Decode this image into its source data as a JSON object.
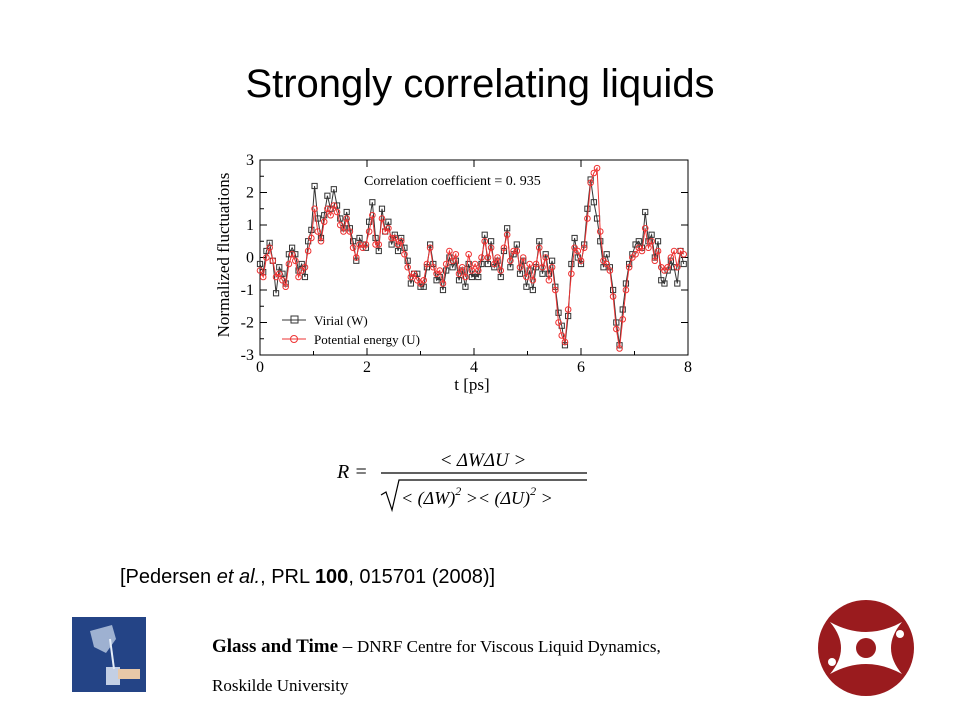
{
  "slide": {
    "title": "Strongly correlating liquids",
    "citation": {
      "before": "[Pedersen ",
      "etal": "et al.",
      "mid": ", PRL ",
      "volume": "100",
      "after": ", 015701 (2008)]"
    },
    "footer": {
      "brand": "Glass and Time",
      "dash": " – ",
      "centre": "DNRF Centre for Viscous Liquid Dynamics,",
      "university": "Roskilde University"
    },
    "formula": {
      "lhs": "R =",
      "numerator": "< ΔWΔU >",
      "den_open": "< (ΔW)",
      "den_mid": " >< (ΔU)",
      "den_close": " >",
      "exponent": "2"
    }
  },
  "chart_data": {
    "type": "line",
    "xlabel": "t [ps]",
    "ylabel": "Normalized fluctuations",
    "xlim": [
      0,
      8
    ],
    "ylim": [
      -3,
      3
    ],
    "xticks": [
      "0",
      "2",
      "4",
      "6",
      "8"
    ],
    "yticks": [
      "3",
      "2",
      "1",
      "0",
      "-1",
      "-2",
      "-3"
    ],
    "annotation": "Correlation coefficient = 0. 935",
    "legend_position": "bottom-left",
    "series": [
      {
        "name": "Virial (W)",
        "color": "#333333",
        "marker": "square",
        "points": [
          [
            0.0,
            -0.2
          ],
          [
            0.06,
            -0.45
          ],
          [
            0.12,
            0.2
          ],
          [
            0.18,
            0.45
          ],
          [
            0.24,
            -0.1
          ],
          [
            0.3,
            -1.1
          ],
          [
            0.36,
            -0.3
          ],
          [
            0.42,
            -0.5
          ],
          [
            0.48,
            -0.8
          ],
          [
            0.54,
            0.1
          ],
          [
            0.6,
            0.3
          ],
          [
            0.66,
            0.1
          ],
          [
            0.72,
            -0.4
          ],
          [
            0.78,
            -0.2
          ],
          [
            0.84,
            -0.6
          ],
          [
            0.9,
            0.5
          ],
          [
            0.96,
            0.85
          ],
          [
            1.02,
            2.2
          ],
          [
            1.08,
            1.2
          ],
          [
            1.14,
            0.6
          ],
          [
            1.2,
            1.3
          ],
          [
            1.26,
            1.9
          ],
          [
            1.32,
            1.5
          ],
          [
            1.38,
            2.1
          ],
          [
            1.44,
            1.6
          ],
          [
            1.5,
            1.2
          ],
          [
            1.56,
            0.9
          ],
          [
            1.62,
            1.4
          ],
          [
            1.68,
            0.9
          ],
          [
            1.74,
            0.5
          ],
          [
            1.8,
            -0.1
          ],
          [
            1.86,
            0.6
          ],
          [
            1.92,
            0.4
          ],
          [
            1.98,
            0.3
          ],
          [
            2.04,
            1.1
          ],
          [
            2.1,
            1.7
          ],
          [
            2.16,
            0.6
          ],
          [
            2.22,
            0.2
          ],
          [
            2.28,
            1.5
          ],
          [
            2.34,
            0.8
          ],
          [
            2.4,
            1.1
          ],
          [
            2.46,
            0.4
          ],
          [
            2.52,
            0.7
          ],
          [
            2.58,
            0.2
          ],
          [
            2.64,
            0.6
          ],
          [
            2.7,
            0.3
          ],
          [
            2.76,
            -0.1
          ],
          [
            2.82,
            -0.8
          ],
          [
            2.88,
            -0.5
          ],
          [
            2.94,
            -0.5
          ],
          [
            3.0,
            -0.9
          ],
          [
            3.06,
            -0.9
          ],
          [
            3.12,
            -0.3
          ],
          [
            3.18,
            0.4
          ],
          [
            3.24,
            -0.2
          ],
          [
            3.3,
            -0.7
          ],
          [
            3.36,
            -0.6
          ],
          [
            3.42,
            -1.0
          ],
          [
            3.48,
            -0.4
          ],
          [
            3.54,
            0.0
          ],
          [
            3.6,
            -0.3
          ],
          [
            3.66,
            -0.1
          ],
          [
            3.72,
            -0.7
          ],
          [
            3.78,
            -0.4
          ],
          [
            3.84,
            -0.9
          ],
          [
            3.9,
            -0.2
          ],
          [
            3.96,
            -0.6
          ],
          [
            4.02,
            -0.5
          ],
          [
            4.08,
            -0.6
          ],
          [
            4.14,
            -0.2
          ],
          [
            4.2,
            0.7
          ],
          [
            4.26,
            -0.2
          ],
          [
            4.32,
            0.5
          ],
          [
            4.38,
            -0.3
          ],
          [
            4.44,
            -0.1
          ],
          [
            4.5,
            -0.6
          ],
          [
            4.56,
            0.2
          ],
          [
            4.62,
            0.9
          ],
          [
            4.68,
            -0.3
          ],
          [
            4.74,
            0.1
          ],
          [
            4.8,
            0.4
          ],
          [
            4.86,
            -0.5
          ],
          [
            4.92,
            -0.1
          ],
          [
            4.98,
            -0.9
          ],
          [
            5.04,
            -0.4
          ],
          [
            5.1,
            -1.0
          ],
          [
            5.16,
            -0.3
          ],
          [
            5.22,
            0.5
          ],
          [
            5.28,
            -0.5
          ],
          [
            5.34,
            0.1
          ],
          [
            5.4,
            -0.5
          ],
          [
            5.46,
            -0.1
          ],
          [
            5.52,
            -0.9
          ],
          [
            5.58,
            -1.7
          ],
          [
            5.64,
            -2.1
          ],
          [
            5.7,
            -2.7
          ],
          [
            5.76,
            -1.8
          ],
          [
            5.82,
            -0.2
          ],
          [
            5.88,
            0.6
          ],
          [
            5.94,
            0.0
          ],
          [
            6.0,
            -0.2
          ],
          [
            6.06,
            0.4
          ],
          [
            6.12,
            1.5
          ],
          [
            6.18,
            2.4
          ],
          [
            6.24,
            1.7
          ],
          [
            6.3,
            1.2
          ],
          [
            6.36,
            0.5
          ],
          [
            6.42,
            -0.3
          ],
          [
            6.48,
            0.1
          ],
          [
            6.54,
            -0.3
          ],
          [
            6.6,
            -1.0
          ],
          [
            6.66,
            -2.0
          ],
          [
            6.72,
            -2.7
          ],
          [
            6.78,
            -1.6
          ],
          [
            6.84,
            -0.8
          ],
          [
            6.9,
            -0.2
          ],
          [
            6.96,
            0.1
          ],
          [
            7.02,
            0.4
          ],
          [
            7.08,
            0.5
          ],
          [
            7.14,
            0.3
          ],
          [
            7.2,
            1.4
          ],
          [
            7.26,
            0.5
          ],
          [
            7.32,
            0.7
          ],
          [
            7.38,
            0.0
          ],
          [
            7.44,
            0.5
          ],
          [
            7.5,
            -0.7
          ],
          [
            7.56,
            -0.8
          ],
          [
            7.62,
            -0.4
          ],
          [
            7.68,
            -0.1
          ],
          [
            7.74,
            -0.3
          ],
          [
            7.8,
            -0.8
          ],
          [
            7.86,
            0.2
          ],
          [
            7.92,
            -0.2
          ]
        ]
      },
      {
        "name": "Potential energy (U)",
        "color": "#ee3333",
        "marker": "circle",
        "points": [
          [
            0.0,
            -0.4
          ],
          [
            0.06,
            -0.6
          ],
          [
            0.12,
            0.0
          ],
          [
            0.18,
            0.3
          ],
          [
            0.24,
            -0.1
          ],
          [
            0.3,
            -0.6
          ],
          [
            0.36,
            -0.5
          ],
          [
            0.42,
            -0.7
          ],
          [
            0.48,
            -0.9
          ],
          [
            0.54,
            -0.2
          ],
          [
            0.6,
            0.1
          ],
          [
            0.66,
            -0.1
          ],
          [
            0.72,
            -0.6
          ],
          [
            0.78,
            -0.4
          ],
          [
            0.84,
            -0.3
          ],
          [
            0.9,
            0.2
          ],
          [
            0.96,
            0.6
          ],
          [
            1.02,
            1.5
          ],
          [
            1.08,
            0.8
          ],
          [
            1.14,
            0.5
          ],
          [
            1.2,
            1.1
          ],
          [
            1.26,
            1.5
          ],
          [
            1.32,
            1.3
          ],
          [
            1.38,
            1.6
          ],
          [
            1.44,
            1.4
          ],
          [
            1.5,
            1.0
          ],
          [
            1.56,
            0.8
          ],
          [
            1.62,
            1.2
          ],
          [
            1.68,
            0.8
          ],
          [
            1.74,
            0.3
          ],
          [
            1.8,
            0.0
          ],
          [
            1.86,
            0.4
          ],
          [
            1.92,
            0.3
          ],
          [
            1.98,
            0.4
          ],
          [
            2.04,
            0.8
          ],
          [
            2.1,
            1.3
          ],
          [
            2.16,
            0.4
          ],
          [
            2.22,
            0.4
          ],
          [
            2.28,
            1.2
          ],
          [
            2.34,
            0.8
          ],
          [
            2.4,
            0.9
          ],
          [
            2.46,
            0.6
          ],
          [
            2.52,
            0.6
          ],
          [
            2.58,
            0.4
          ],
          [
            2.64,
            0.5
          ],
          [
            2.7,
            0.1
          ],
          [
            2.76,
            -0.3
          ],
          [
            2.82,
            -0.6
          ],
          [
            2.88,
            -0.5
          ],
          [
            2.94,
            -0.7
          ],
          [
            3.0,
            -0.8
          ],
          [
            3.06,
            -0.7
          ],
          [
            3.12,
            -0.2
          ],
          [
            3.18,
            0.3
          ],
          [
            3.24,
            -0.3
          ],
          [
            3.3,
            -0.5
          ],
          [
            3.36,
            -0.4
          ],
          [
            3.42,
            -0.8
          ],
          [
            3.48,
            -0.2
          ],
          [
            3.54,
            0.2
          ],
          [
            3.6,
            -0.1
          ],
          [
            3.66,
            0.1
          ],
          [
            3.72,
            -0.5
          ],
          [
            3.78,
            -0.3
          ],
          [
            3.84,
            -0.6
          ],
          [
            3.9,
            0.1
          ],
          [
            3.96,
            -0.4
          ],
          [
            4.02,
            -0.2
          ],
          [
            4.08,
            -0.4
          ],
          [
            4.14,
            0.0
          ],
          [
            4.2,
            0.5
          ],
          [
            4.26,
            0.0
          ],
          [
            4.32,
            0.3
          ],
          [
            4.38,
            -0.2
          ],
          [
            4.44,
            0.0
          ],
          [
            4.5,
            -0.4
          ],
          [
            4.56,
            0.3
          ],
          [
            4.62,
            0.7
          ],
          [
            4.68,
            -0.1
          ],
          [
            4.74,
            0.2
          ],
          [
            4.8,
            0.2
          ],
          [
            4.86,
            -0.3
          ],
          [
            4.92,
            0.0
          ],
          [
            4.98,
            -0.6
          ],
          [
            5.04,
            -0.2
          ],
          [
            5.1,
            -0.7
          ],
          [
            5.16,
            -0.2
          ],
          [
            5.22,
            0.3
          ],
          [
            5.28,
            -0.3
          ],
          [
            5.34,
            0.0
          ],
          [
            5.4,
            -0.7
          ],
          [
            5.46,
            -0.3
          ],
          [
            5.52,
            -1.0
          ],
          [
            5.58,
            -2.0
          ],
          [
            5.64,
            -2.4
          ],
          [
            5.7,
            -2.6
          ],
          [
            5.76,
            -1.6
          ],
          [
            5.82,
            -0.5
          ],
          [
            5.88,
            0.3
          ],
          [
            5.94,
            0.2
          ],
          [
            6.0,
            -0.1
          ],
          [
            6.06,
            0.3
          ],
          [
            6.12,
            1.2
          ],
          [
            6.18,
            2.3
          ],
          [
            6.24,
            2.6
          ],
          [
            6.3,
            2.75
          ],
          [
            6.36,
            0.8
          ],
          [
            6.42,
            -0.1
          ],
          [
            6.48,
            -0.2
          ],
          [
            6.54,
            -0.4
          ],
          [
            6.6,
            -1.2
          ],
          [
            6.66,
            -2.2
          ],
          [
            6.72,
            -2.8
          ],
          [
            6.78,
            -1.9
          ],
          [
            6.84,
            -1.0
          ],
          [
            6.9,
            -0.3
          ],
          [
            6.96,
            0.0
          ],
          [
            7.02,
            0.1
          ],
          [
            7.08,
            0.3
          ],
          [
            7.14,
            0.2
          ],
          [
            7.2,
            0.9
          ],
          [
            7.26,
            0.3
          ],
          [
            7.32,
            0.5
          ],
          [
            7.38,
            -0.1
          ],
          [
            7.44,
            0.2
          ],
          [
            7.5,
            -0.3
          ],
          [
            7.56,
            -0.4
          ],
          [
            7.62,
            -0.3
          ],
          [
            7.68,
            0.0
          ],
          [
            7.74,
            0.2
          ],
          [
            7.8,
            -0.3
          ],
          [
            7.86,
            0.2
          ],
          [
            7.92,
            0.1
          ]
        ]
      }
    ]
  }
}
